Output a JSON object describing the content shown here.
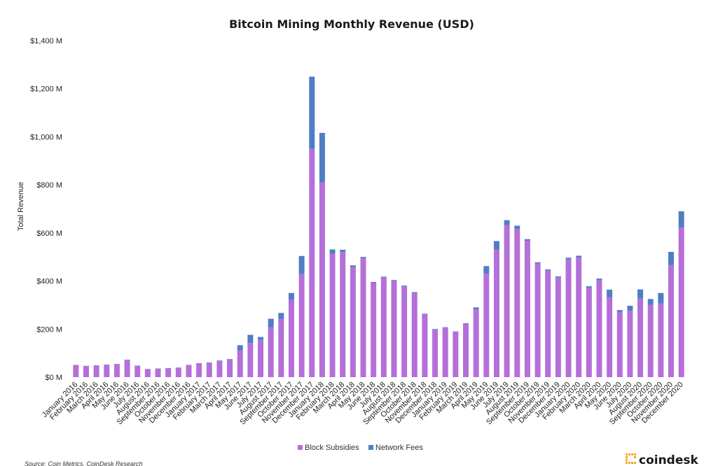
{
  "chart_data": {
    "type": "bar",
    "stacked": true,
    "title": "Bitcoin Mining Monthly Revenue (USD)",
    "xlabel": "",
    "ylabel": "Total Revenue",
    "ylim": [
      0,
      1400
    ],
    "yticks": [
      0,
      200,
      400,
      600,
      800,
      1000,
      1200,
      1400
    ],
    "ytick_labels": [
      "$0 M",
      "$200 M",
      "$400 M",
      "$600 M",
      "$800 M",
      "$1,000 M",
      "$1,200 M",
      "$1,400 M"
    ],
    "grid": false,
    "legend_position": "bottom",
    "categories": [
      "January 2016",
      "February 2016",
      "March 2016",
      "April 2016",
      "May 2016",
      "June 2016",
      "July 2016",
      "August 2016",
      "September 2016",
      "October 2016",
      "November 2016",
      "December 2016",
      "January 2017",
      "February 2017",
      "March 2017",
      "April 2017",
      "May 2017",
      "June 2017",
      "July 2017",
      "August 2017",
      "September 2017",
      "October 2017",
      "November 2017",
      "December 2017",
      "January 2018",
      "February 2018",
      "March 2018",
      "April 2018",
      "May 2018",
      "June 2018",
      "July 2018",
      "August 2018",
      "September 2018",
      "October 2018",
      "November 2018",
      "December 2018",
      "January 2019",
      "February 2019",
      "March 2019",
      "April 2019",
      "May 2019",
      "June 2019",
      "July 2019",
      "August 2019",
      "September 2019",
      "October 2019",
      "November 2019",
      "December 2019",
      "January 2020",
      "February 2020",
      "March 2020",
      "April 2020",
      "May 2020",
      "June 2020",
      "July 2020",
      "August 2020",
      "September 2020",
      "October 2020",
      "November 2020",
      "December 2020"
    ],
    "series": [
      {
        "name": "Block Subsidies",
        "color": "#b56fd9",
        "values": [
          50,
          46,
          48,
          51,
          54,
          72,
          47,
          33,
          35,
          37,
          39,
          49,
          56,
          59,
          66,
          71,
          112,
          142,
          155,
          208,
          243,
          322,
          429,
          950,
          810,
          513,
          520,
          458,
          495,
          393,
          415,
          401,
          378,
          351,
          262,
          198,
          206,
          188,
          221,
          282,
          430,
          531,
          633,
          617,
          567,
          472,
          443,
          415,
          490,
          497,
          372,
          402,
          332,
          271,
          276,
          327,
          301,
          306,
          466,
          623
        ]
      },
      {
        "name": "Network Fees",
        "color": "#4f7ec4",
        "values": [
          1,
          1,
          1,
          1,
          1,
          1,
          1,
          1,
          1,
          1,
          1,
          2,
          2,
          2,
          3,
          4,
          21,
          34,
          12,
          35,
          24,
          28,
          75,
          300,
          206,
          18,
          10,
          7,
          5,
          3,
          3,
          3,
          3,
          3,
          2,
          2,
          2,
          2,
          3,
          8,
          32,
          35,
          20,
          13,
          7,
          6,
          5,
          4,
          7,
          8,
          6,
          8,
          32,
          8,
          21,
          38,
          24,
          44,
          55,
          67
        ]
      }
    ]
  },
  "footer": {
    "source": "Source: Coin Metrics, CoinDesk Research",
    "brand": "coindesk"
  }
}
